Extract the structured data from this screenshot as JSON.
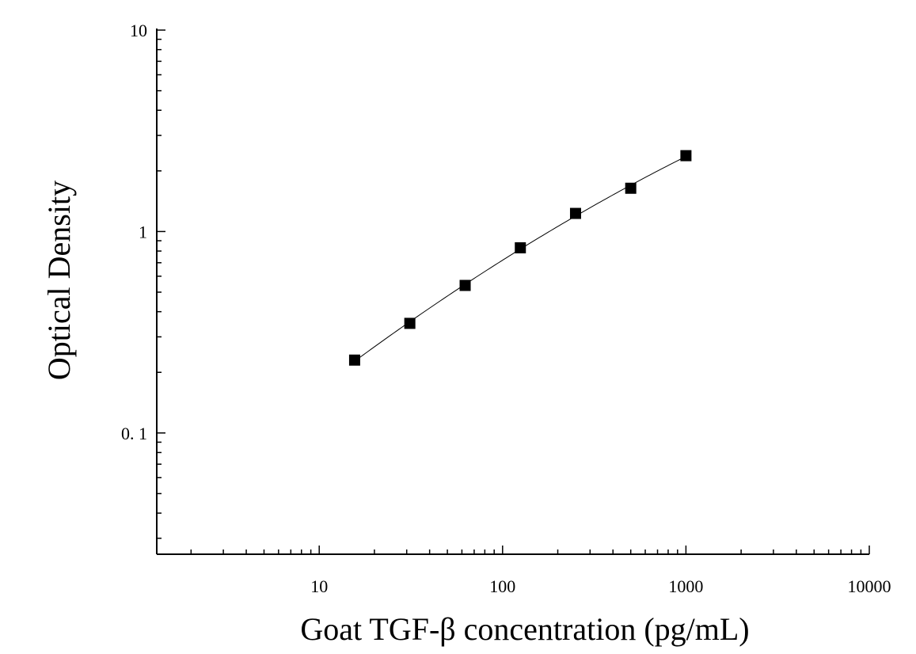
{
  "chart_data": {
    "type": "scatter",
    "title": "",
    "xlabel": "Goat TGF-β concentration (pg/mL)",
    "ylabel": "Optical Density",
    "xscale": "log",
    "yscale": "log",
    "xlim": [
      1.3,
      10000
    ],
    "ylim": [
      0.025,
      10
    ],
    "x_ticks": [
      10,
      100,
      1000,
      10000
    ],
    "x_tick_labels": [
      "10",
      "100",
      "1000",
      "10000"
    ],
    "y_ticks": [
      0.1,
      1,
      10
    ],
    "y_tick_labels": [
      "0. 1",
      "1",
      "10"
    ],
    "grid": false,
    "legend": "none",
    "marker": "square",
    "fit_line": true,
    "color": "#000000",
    "series": [
      {
        "x": [
          15.6,
          31.2,
          62.5,
          125,
          250,
          500,
          1000
        ],
        "y": [
          0.23,
          0.35,
          0.54,
          0.83,
          1.23,
          1.64,
          2.38
        ]
      }
    ]
  }
}
